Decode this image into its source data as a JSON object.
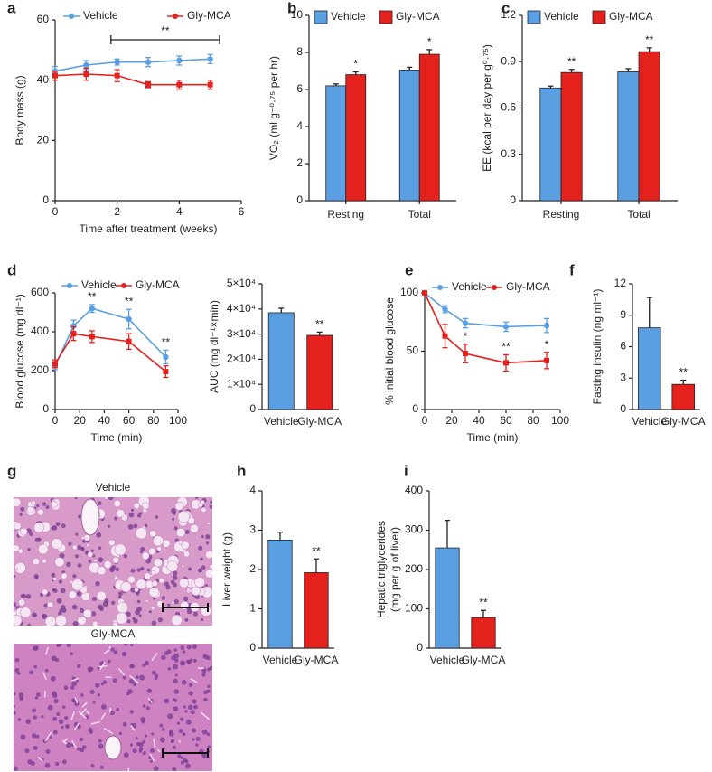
{
  "chart_data": [
    {
      "panel": "a",
      "type": "line",
      "xlabel": "Time after treatment (weeks)",
      "ylabel": "Body mass (g)",
      "x": [
        0,
        1,
        2,
        3,
        4,
        5
      ],
      "xlim": [
        0,
        6
      ],
      "xticks": [
        0,
        2,
        4,
        6
      ],
      "ylim": [
        0,
        60
      ],
      "yticks": [
        0,
        20,
        40,
        60
      ],
      "series": [
        {
          "name": "Vehicle",
          "color": "#5b9fe3",
          "values": [
            43,
            45,
            46,
            46,
            46.5,
            47
          ],
          "errors": [
            1.5,
            1.5,
            1,
            1.5,
            1.5,
            1.5
          ]
        },
        {
          "name": "Gly-MCA",
          "color": "#e4211c",
          "values": [
            41.5,
            42,
            41.5,
            38.5,
            38.5,
            38.5
          ],
          "errors": [
            1.5,
            2,
            2,
            1,
            1.5,
            1.5
          ]
        }
      ],
      "bracket": {
        "text": "**",
        "x": [
          1.8,
          5.3
        ]
      }
    },
    {
      "panel": "b",
      "type": "bar",
      "ylabel": "VO₂ (ml g⁻⁰·⁷⁵ per hr)",
      "categories": [
        "Resting",
        "Total"
      ],
      "ylim": [
        0,
        10
      ],
      "yticks": [
        0,
        2,
        4,
        6,
        8,
        10
      ],
      "series": [
        {
          "name": "Vehicle",
          "color": "#5b9fe3",
          "values": [
            6.2,
            7.05
          ],
          "errors": [
            0.1,
            0.15
          ]
        },
        {
          "name": "Gly-MCA",
          "color": "#e4211c",
          "values": [
            6.8,
            7.9
          ],
          "errors": [
            0.15,
            0.25
          ],
          "stars": [
            "*",
            "*"
          ]
        }
      ]
    },
    {
      "panel": "c",
      "type": "bar",
      "ylabel": "EE (kcal per day per g⁰·⁷⁵)",
      "categories": [
        "Resting",
        "Total"
      ],
      "ylim": [
        0,
        1.2
      ],
      "yticks": [
        0,
        0.3,
        0.6,
        0.9,
        1.2
      ],
      "series": [
        {
          "name": "Vehicle",
          "color": "#5b9fe3",
          "values": [
            0.73,
            0.835
          ],
          "errors": [
            0.012,
            0.02
          ]
        },
        {
          "name": "Gly-MCA",
          "color": "#e4211c",
          "values": [
            0.83,
            0.965
          ],
          "errors": [
            0.02,
            0.025
          ],
          "stars": [
            "**",
            "**"
          ]
        }
      ]
    },
    {
      "panel": "d",
      "type": "line",
      "xlabel": "Time (min)",
      "ylabel": "Blood glucose (mg dl⁻¹)",
      "x": [
        0,
        15,
        30,
        60,
        90
      ],
      "xlim": [
        0,
        100
      ],
      "xticks": [
        0,
        20,
        40,
        60,
        80,
        100
      ],
      "ylim": [
        0,
        600
      ],
      "yticks": [
        0,
        200,
        400,
        600
      ],
      "series": [
        {
          "name": "Vehicle",
          "color": "#5b9fe3",
          "values": [
            225,
            430,
            520,
            465,
            270
          ],
          "errors": [
            20,
            30,
            20,
            50,
            35
          ],
          "stars": [
            null,
            null,
            "**",
            "**",
            "**"
          ]
        },
        {
          "name": "Gly-MCA",
          "color": "#e4211c",
          "values": [
            235,
            390,
            375,
            350,
            195
          ],
          "errors": [
            20,
            35,
            30,
            40,
            30
          ]
        }
      ]
    },
    {
      "type": "simplebar",
      "ylabel": "AUC (mg dl⁻¹×min)",
      "categories": [
        "Vehicle",
        "Gly-MCA"
      ],
      "values": [
        38500,
        29500
      ],
      "errors": [
        1800,
        1300
      ],
      "colors": [
        "#5b9fe3",
        "#e4211c"
      ],
      "stars": [
        null,
        "**"
      ],
      "ylim": [
        0,
        50000
      ],
      "yticks": [
        0,
        {
          "value": 10000,
          "label": "1×10⁴"
        },
        {
          "value": 20000,
          "label": "2×10⁴"
        },
        {
          "value": 30000,
          "label": "3×10⁴"
        },
        {
          "value": 40000,
          "label": "4×10⁴"
        },
        {
          "value": 50000,
          "label": "5×10⁴"
        }
      ]
    },
    {
      "panel": "e",
      "type": "line",
      "xlabel": "Time (min)",
      "ylabel": "% initial blood glucose",
      "x": [
        0,
        15,
        30,
        60,
        90
      ],
      "xlim": [
        0,
        100
      ],
      "xticks": [
        0,
        20,
        40,
        60,
        80,
        100
      ],
      "ylim": [
        0,
        100
      ],
      "yticks": [
        0,
        50,
        100
      ],
      "series": [
        {
          "name": "Vehicle",
          "color": "#5b9fe3",
          "values": [
            100,
            86,
            74,
            71,
            72
          ],
          "errors": [
            1,
            3,
            4,
            4,
            6
          ]
        },
        {
          "name": "Gly-MCA",
          "color": "#e4211c",
          "values": [
            100,
            63,
            48,
            40,
            42
          ],
          "errors": [
            1,
            10,
            8,
            7,
            7
          ],
          "stars": [
            null,
            null,
            "*",
            "**",
            "*"
          ]
        }
      ]
    },
    {
      "panel": "f",
      "type": "simplebar",
      "ylabel": "Fasting insulin (ng ml⁻¹)",
      "categories": [
        "Vehicle",
        "Gly-MCA"
      ],
      "values": [
        7.8,
        2.4
      ],
      "errors": [
        2.9,
        0.4
      ],
      "colors": [
        "#5b9fe3",
        "#e4211c"
      ],
      "stars": [
        null,
        "**"
      ],
      "ylim": [
        0,
        12
      ],
      "yticks": [
        0,
        3,
        6,
        9,
        12
      ]
    },
    {
      "panel": "h",
      "type": "simplebar",
      "ylabel": "Liver weight (g)",
      "categories": [
        "Vehicle",
        "Gly-MCA"
      ],
      "values": [
        2.75,
        1.92
      ],
      "errors": [
        0.2,
        0.35
      ],
      "colors": [
        "#5b9fe3",
        "#e4211c"
      ],
      "stars": [
        null,
        "**"
      ],
      "ylim": [
        0,
        4
      ],
      "yticks": [
        0,
        1,
        2,
        3,
        4
      ]
    },
    {
      "panel": "i",
      "type": "simplebar",
      "ylabel": [
        "Hepatic triglycerides",
        "(mg per g of liver)"
      ],
      "categories": [
        "Vehicle",
        "Gly-MCA"
      ],
      "values": [
        255,
        78
      ],
      "errors": [
        70,
        18
      ],
      "colors": [
        "#5b9fe3",
        "#e4211c"
      ],
      "stars": [
        null,
        "**"
      ],
      "ylim": [
        0,
        400
      ],
      "yticks": [
        0,
        100,
        200,
        300,
        400
      ]
    }
  ],
  "images": {
    "panel": "g",
    "captions": [
      "Vehicle",
      "Gly-MCA"
    ]
  }
}
